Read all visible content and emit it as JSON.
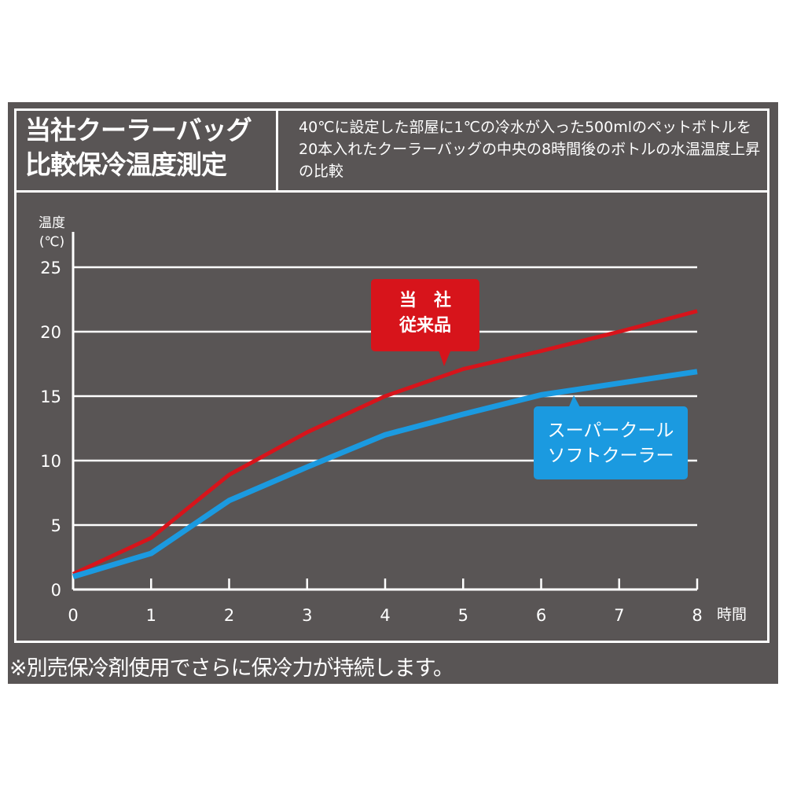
{
  "title_lines": [
    "当社クーラーバッグ",
    "比較保冷温度測定"
  ],
  "description": "40℃に設定した部屋に1℃の冷水が入った500mlのペットボトルを20本入れたクーラーバッグの中央の8時間後のボトルの水温温度上昇の比較",
  "footnote": "※別売保冷剤使用でさらに保冷力が持続します。",
  "chart_data": {
    "type": "line",
    "ylabel_lines": [
      "温度",
      "(℃)"
    ],
    "xlabel": "時間",
    "x": [
      0,
      1,
      2,
      3,
      4,
      5,
      6,
      7,
      8
    ],
    "xticks": [
      "0",
      "1",
      "2",
      "3",
      "4",
      "5",
      "6",
      "7",
      "8"
    ],
    "yticks": [
      "0",
      "5",
      "10",
      "15",
      "20",
      "25"
    ],
    "xlim": [
      0,
      8
    ],
    "ylim": [
      0,
      25
    ],
    "grid": true,
    "series": [
      {
        "name_lines": [
          "当　社",
          "従来品"
        ],
        "color": "#d7141b",
        "values": [
          1.2,
          4.0,
          8.9,
          12.2,
          15.0,
          17.1,
          18.5,
          20.0,
          21.6
        ]
      },
      {
        "name_lines": [
          "スーパークール",
          "ソフトクーラー"
        ],
        "color": "#1b9ae0",
        "values": [
          1.0,
          2.8,
          6.9,
          9.5,
          12.0,
          13.6,
          15.1,
          16.0,
          16.9
        ]
      }
    ]
  }
}
